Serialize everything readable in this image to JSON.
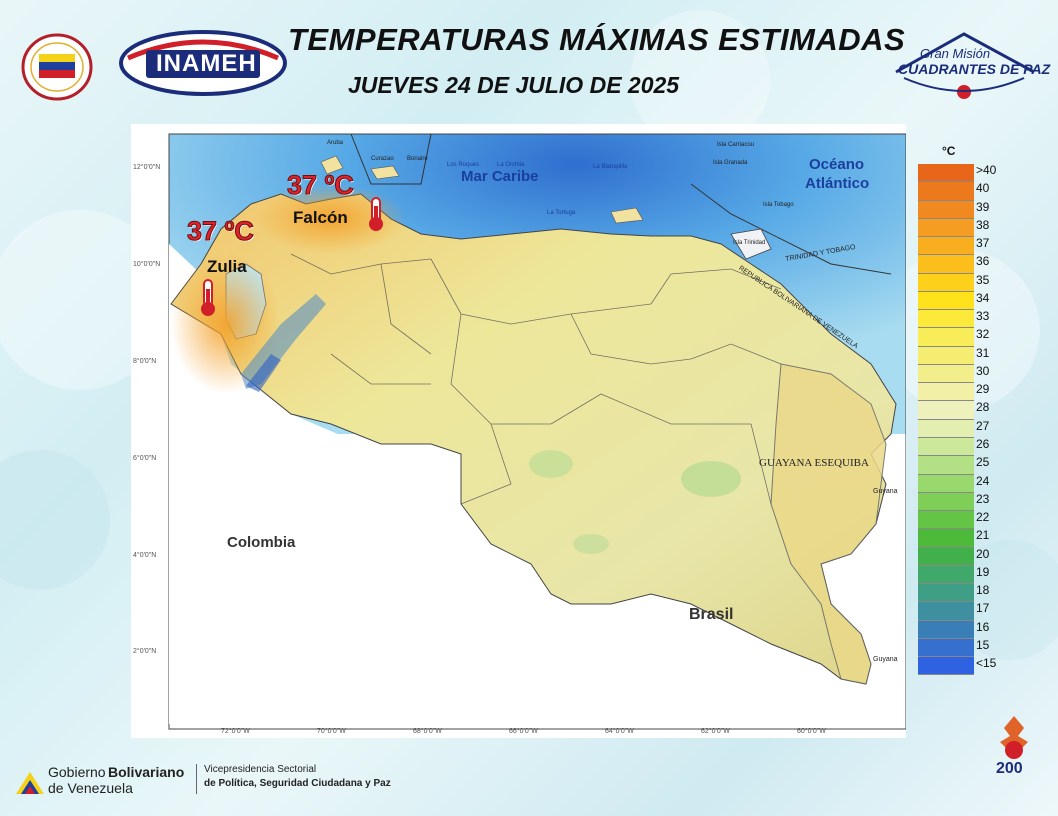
{
  "header": {
    "title": "TEMPERATURAS MÁXIMAS ESTIMADAS",
    "subtitle": "JUEVES 24 DE JULIO DE 2025"
  },
  "logos": {
    "inameh": "INAMEH",
    "gmcp_line1": "Gran Misión",
    "gmcp_line2": "CUADRANTES DE PAZ",
    "bicentenario": "200"
  },
  "map": {
    "lat_labels": [
      "12°0'0\"N",
      "10°0'0\"N",
      "8°0'0\"N",
      "6°0'0\"N",
      "4°0'0\"N",
      "2°0'0\"N"
    ],
    "lon_labels": [
      "72°0'0\"W",
      "70°0'0\"W",
      "68°0'0\"W",
      "66°0'0\"W",
      "64°0'0\"W",
      "62°0'0\"W",
      "60°0'0\"W"
    ],
    "places": {
      "mar_caribe": "Mar Caribe",
      "oceano": "Océano",
      "atlantico": "Atlántico",
      "colombia": "Colombia",
      "brasil": "Brasil",
      "guayana_esequiba": "GUAYANA ESEQUIBA",
      "trinidad_tobago": "TRINIDAD Y TOBAGO",
      "republica": "REPUBLICA BOLIVARIANA DE VENEZUELA",
      "guyana1": "Guyana",
      "guyana2": "Guyana",
      "aruba": "Aruba",
      "curazao": "Curazao",
      "bonaire": "Bonaire",
      "los_roques": "Los Roques",
      "la_orchila": "La Orchila",
      "la_blanquilla": "La Blanquilla",
      "la_tortuga": "La Tortuga",
      "isla_carriacou": "Isla Carriacou",
      "isla_granada": "Isla Granada",
      "isla_tobago": "Isla Tobago",
      "isla_trinidad": "Isla Trinidad"
    },
    "highlights": [
      {
        "state": "Zulia",
        "temp": "37 ºC"
      },
      {
        "state": "Falcón",
        "temp": "37 ºC"
      }
    ]
  },
  "legend": {
    "unit": "°C",
    "labels": [
      ">40",
      "40",
      "39",
      "38",
      "37",
      "36",
      "35",
      "34",
      "33",
      "32",
      "31",
      "30",
      "29",
      "28",
      "27",
      "26",
      "25",
      "24",
      "23",
      "22",
      "21",
      "20",
      "19",
      "18",
      "17",
      "16",
      "15",
      "<15"
    ],
    "colors": [
      "#e8661a",
      "#ec7a1d",
      "#f08a20",
      "#f59c22",
      "#f8ae1e",
      "#fbbe1c",
      "#fdd01b",
      "#ffe21c",
      "#fce93a",
      "#f8ec58",
      "#f5ed72",
      "#f3ee8c",
      "#f2efa6",
      "#eff1bd",
      "#e2efb0",
      "#cce89a",
      "#b3e084",
      "#98d86c",
      "#7ece57",
      "#63c446",
      "#4eba3a",
      "#42b04a",
      "#3fa86a",
      "#3f9e86",
      "#3e8fa0",
      "#3a7eb8",
      "#3670cf",
      "#2e62e0"
    ]
  },
  "footer": {
    "gob_line1": "Gobierno ",
    "gob_line1b": "Bolivariano",
    "gob_line2": "de Venezuela",
    "vice_line1": "Vicepresidencia Sectorial",
    "vice_line2": "de Política, Seguridad Ciudadana y Paz"
  }
}
